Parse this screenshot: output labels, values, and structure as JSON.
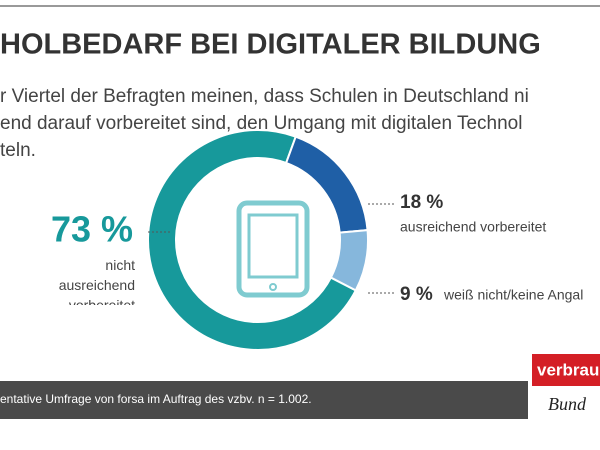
{
  "chart_data": {
    "type": "donut",
    "title": "HOLBEDARF BEI DIGITALER BILDUNG",
    "subtitle": [
      "r Viertel der Befragten meinen, dass Schulen in Deutschland ni",
      "end darauf vorbereitet sind, den Umgang mit digitalen Technol",
      "teln."
    ],
    "categories": [
      "nicht ausreichend vorbereitet",
      "ausreichend vorbereitet",
      "weiß nicht/keine Angal"
    ],
    "values": [
      73,
      18,
      9
    ],
    "value_labels": [
      "73 %",
      "18 %",
      "9 %"
    ],
    "colors": [
      "#17999b",
      "#1f5fa6",
      "#86b7dc"
    ],
    "footer": "entative Umfrage von forsa im Auftrag des vzbv. n = 1.002.",
    "logo": [
      "verbrau",
      "Bund"
    ]
  }
}
